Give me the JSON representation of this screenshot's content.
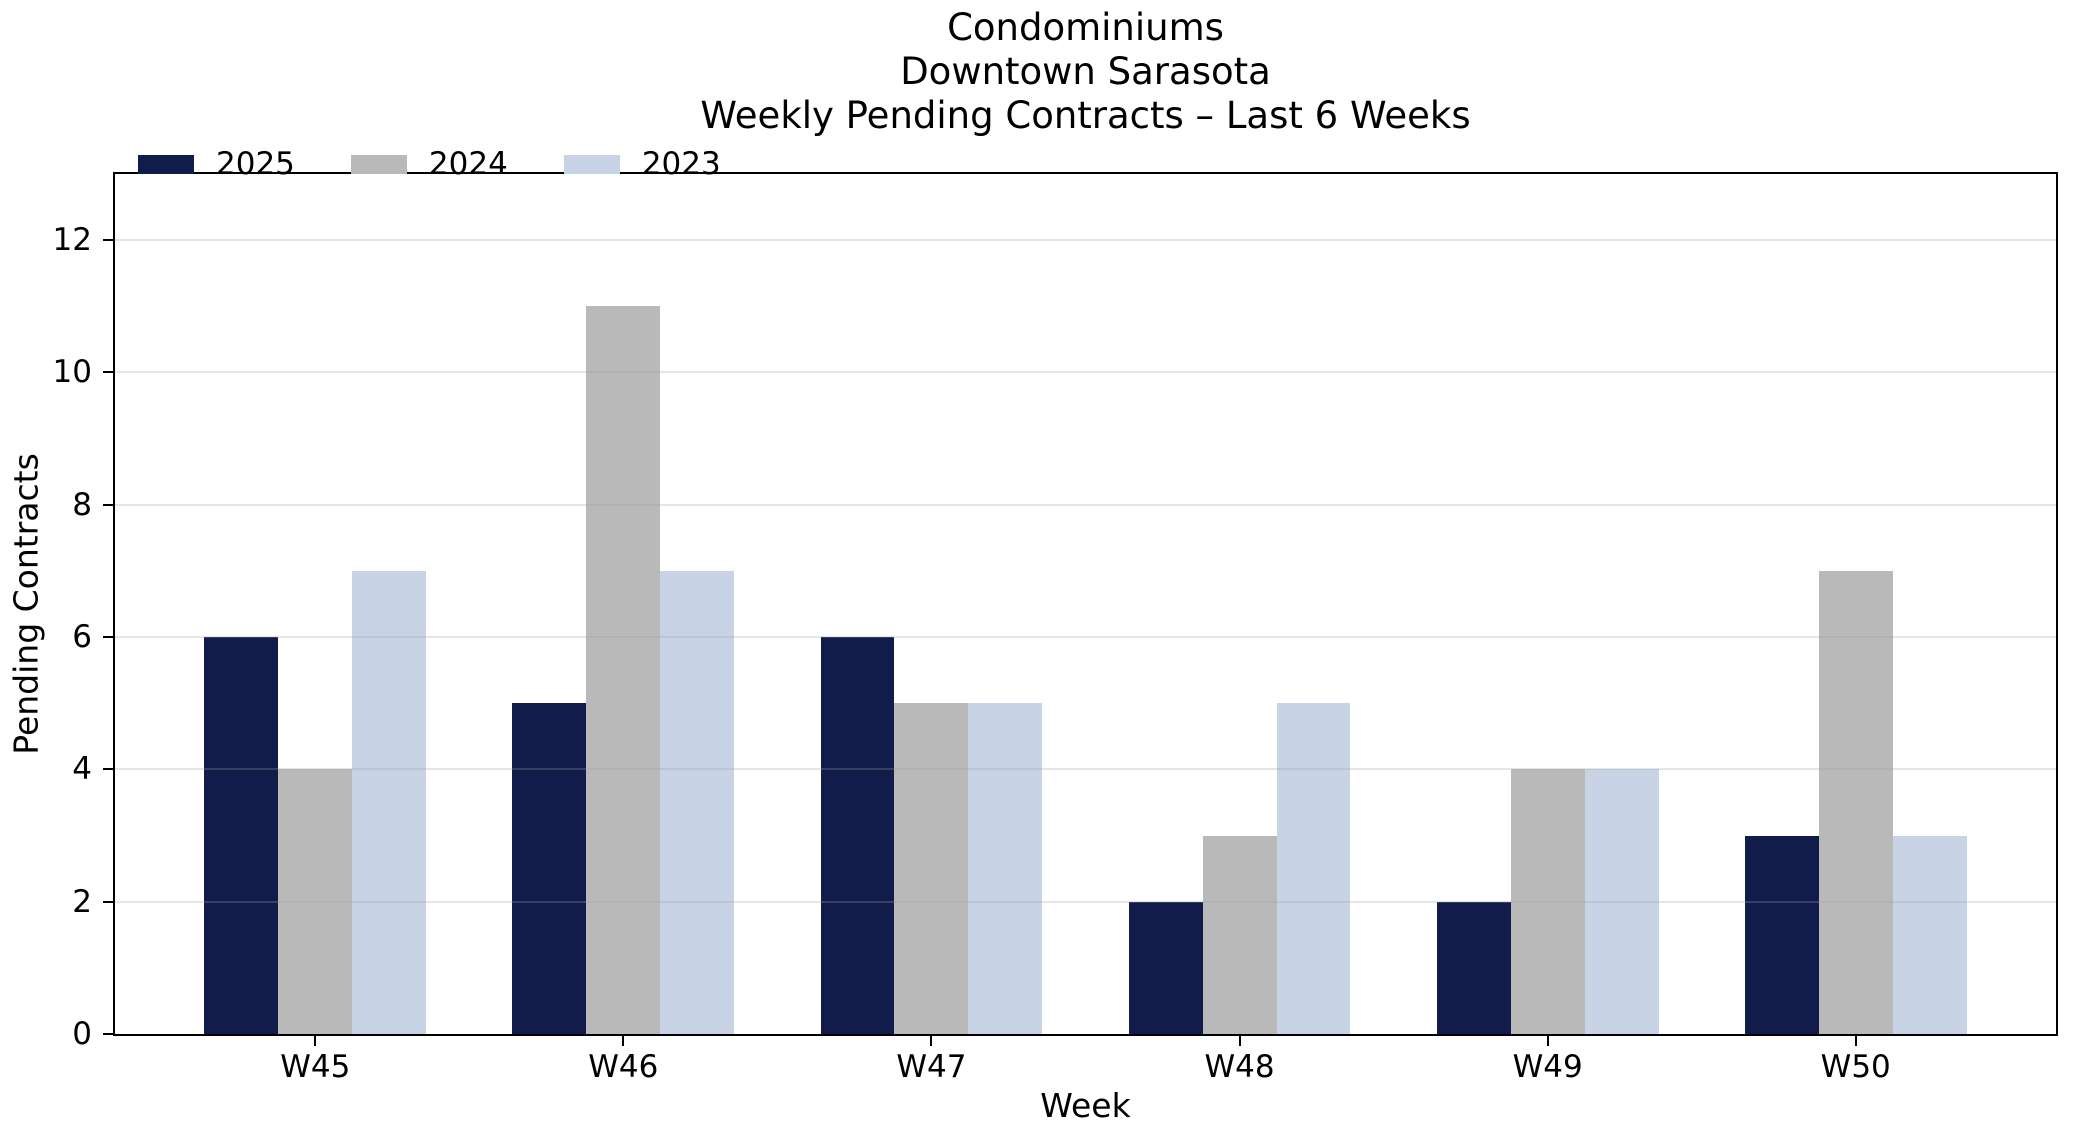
{
  "chart_data": {
    "type": "bar",
    "title_lines": [
      "Condominiums",
      "Downtown Sarasota",
      "Weekly Pending Contracts – Last 6 Weeks"
    ],
    "categories": [
      "W45",
      "W46",
      "W47",
      "W48",
      "W49",
      "W50"
    ],
    "series": [
      {
        "name": "2025",
        "color": "#111c4a",
        "values": [
          6,
          5,
          6,
          2,
          2,
          3
        ]
      },
      {
        "name": "2024",
        "color": "#b9b9b9",
        "values": [
          4,
          11,
          5,
          3,
          4,
          7
        ]
      },
      {
        "name": "2023",
        "color": "#c8d3e6",
        "values": [
          7,
          7,
          5,
          5,
          4,
          3
        ]
      }
    ],
    "xlabel": "Week",
    "ylabel": "Pending Contracts",
    "ylim": [
      0,
      13
    ],
    "yticks": [
      0,
      2,
      4,
      6,
      8,
      10,
      12
    ],
    "grid": "horizontal",
    "legend_position": "top-left",
    "axis_color": "#000000",
    "background_color": "#ffffff"
  }
}
